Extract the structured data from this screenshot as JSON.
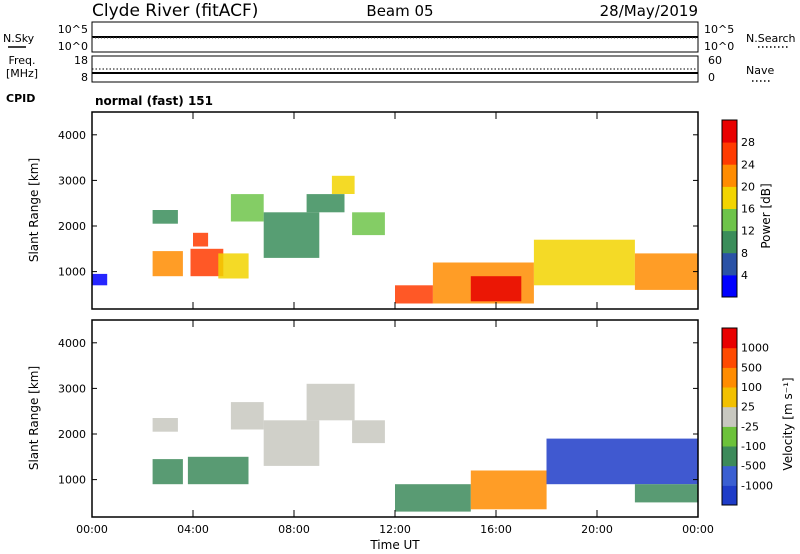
{
  "header": {
    "station": "Clyde River (fitACF)",
    "beam": "Beam 05",
    "date": "28/May/2019"
  },
  "strip_labels": {
    "nsky": "N.Sky",
    "nsky_ticks": [
      "10^5",
      "10^0"
    ],
    "nsearch": "N.Search",
    "nsearch_ticks": [
      "10^5",
      "10^0"
    ],
    "freq": "Freq.",
    "freq_unit": "[MHz]",
    "freq_ticks": [
      "18",
      "8"
    ],
    "nave": "Nave",
    "nave_ticks": [
      "60",
      "0"
    ],
    "cpid": "CPID",
    "cpid_value": "normal (fast) 151"
  },
  "chart_data": [
    {
      "type": "heatmap",
      "title": "Power",
      "xlabel": "",
      "ylabel": "Slant Range [km]",
      "x_ticks": [
        "00:00",
        "04:00",
        "08:00",
        "12:00",
        "16:00",
        "20:00",
        "00:00"
      ],
      "x_hours": [
        0,
        4,
        8,
        12,
        16,
        20,
        24
      ],
      "ylim": [
        180,
        4500
      ],
      "y_ticks": [
        1000,
        2000,
        3000,
        4000
      ],
      "colorbar": {
        "label": "Power [dB]",
        "ticks": [
          4,
          8,
          12,
          16,
          20,
          24,
          28
        ],
        "range": [
          0,
          32
        ],
        "colors": [
          "#0000ff",
          "#2a52a6",
          "#3a8d5a",
          "#6ec44a",
          "#f2d400",
          "#ff8c00",
          "#ff3b00",
          "#e80000"
        ]
      },
      "regions": [
        {
          "t0": 0.0,
          "t1": 0.6,
          "r0": 700,
          "r1": 950,
          "level": 0
        },
        {
          "t0": 2.4,
          "t1": 3.6,
          "r0": 900,
          "r1": 1450,
          "level": 5
        },
        {
          "t0": 3.9,
          "t1": 5.2,
          "r0": 900,
          "r1": 1500,
          "level": 6
        },
        {
          "t0": 4.0,
          "t1": 4.6,
          "r0": 1550,
          "r1": 1850,
          "level": 6
        },
        {
          "t0": 5.0,
          "t1": 6.2,
          "r0": 850,
          "r1": 1400,
          "level": 4
        },
        {
          "t0": 2.4,
          "t1": 3.4,
          "r0": 2050,
          "r1": 2350,
          "level": 2
        },
        {
          "t0": 5.5,
          "t1": 6.8,
          "r0": 2100,
          "r1": 2700,
          "level": 3
        },
        {
          "t0": 6.8,
          "t1": 9.0,
          "r0": 1300,
          "r1": 2300,
          "level": 2
        },
        {
          "t0": 8.5,
          "t1": 10.0,
          "r0": 2300,
          "r1": 2700,
          "level": 2
        },
        {
          "t0": 9.5,
          "t1": 10.4,
          "r0": 2700,
          "r1": 3100,
          "level": 4
        },
        {
          "t0": 10.3,
          "t1": 11.6,
          "r0": 1800,
          "r1": 2300,
          "level": 3
        },
        {
          "t0": 12.0,
          "t1": 13.5,
          "r0": 300,
          "r1": 700,
          "level": 6
        },
        {
          "t0": 13.5,
          "t1": 17.5,
          "r0": 300,
          "r1": 1200,
          "level": 5
        },
        {
          "t0": 15.0,
          "t1": 17.0,
          "r0": 350,
          "r1": 900,
          "level": 7
        },
        {
          "t0": 17.5,
          "t1": 21.5,
          "r0": 700,
          "r1": 1700,
          "level": 4
        },
        {
          "t0": 21.5,
          "t1": 24.0,
          "r0": 600,
          "r1": 1400,
          "level": 5
        }
      ]
    },
    {
      "type": "heatmap",
      "title": "Velocity",
      "xlabel": "Time UT",
      "ylabel": "Slant Range [km]",
      "x_ticks": [
        "00:00",
        "04:00",
        "08:00",
        "12:00",
        "16:00",
        "20:00",
        "00:00"
      ],
      "x_hours": [
        0,
        4,
        8,
        12,
        16,
        20,
        24
      ],
      "ylim": [
        180,
        4500
      ],
      "y_ticks": [
        1000,
        2000,
        3000,
        4000
      ],
      "colorbar": {
        "label": "Velocity [m s⁻¹]",
        "ticks": [
          "1000",
          "500",
          "100",
          "25",
          "-25",
          "-100",
          "-500",
          "-1000"
        ],
        "colors": [
          "#1e3cc8",
          "#3a5fd2",
          "#3c8a5a",
          "#6cc23a",
          "#c8c8c0",
          "#f2c000",
          "#ff8c00",
          "#ff4a00",
          "#e80000"
        ]
      },
      "regions": [
        {
          "t0": 2.4,
          "t1": 3.6,
          "r0": 900,
          "r1": 1450,
          "level": 2
        },
        {
          "t0": 3.8,
          "t1": 6.2,
          "r0": 900,
          "r1": 1500,
          "level": 2
        },
        {
          "t0": 2.4,
          "t1": 3.4,
          "r0": 2050,
          "r1": 2350,
          "level": 4
        },
        {
          "t0": 5.5,
          "t1": 6.8,
          "r0": 2100,
          "r1": 2700,
          "level": 4
        },
        {
          "t0": 6.8,
          "t1": 9.0,
          "r0": 1300,
          "r1": 2300,
          "level": 4
        },
        {
          "t0": 8.5,
          "t1": 10.4,
          "r0": 2300,
          "r1": 3100,
          "level": 4
        },
        {
          "t0": 10.3,
          "t1": 11.6,
          "r0": 1800,
          "r1": 2300,
          "level": 4
        },
        {
          "t0": 12.0,
          "t1": 15.0,
          "r0": 300,
          "r1": 900,
          "level": 2
        },
        {
          "t0": 15.0,
          "t1": 18.0,
          "r0": 350,
          "r1": 1200,
          "level": 6
        },
        {
          "t0": 18.0,
          "t1": 24.0,
          "r0": 900,
          "r1": 1900,
          "level": 0
        },
        {
          "t0": 21.5,
          "t1": 24.0,
          "r0": 500,
          "r1": 900,
          "level": 2
        }
      ]
    }
  ]
}
